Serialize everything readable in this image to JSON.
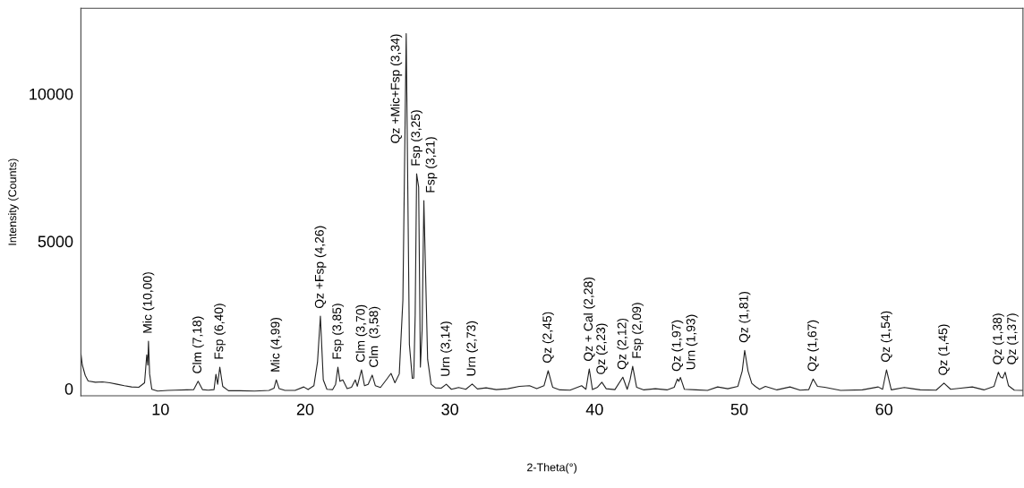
{
  "chart_data": {
    "type": "line",
    "xlabel": "2-Theta(°)",
    "ylabel": "Intensity (Counts)",
    "xlim": [
      4.5,
      69.6
    ],
    "ylim": [
      -240,
      12900
    ],
    "xticks": [
      10,
      20,
      30,
      40,
      50,
      60
    ],
    "yticks": [
      0,
      5000,
      10000
    ],
    "grid": false,
    "legend": false,
    "marker": "none",
    "line_style": "solid",
    "series": [
      {
        "color": "#222222",
        "x": [
          4.5,
          4.6,
          4.8,
          5.0,
          5.5,
          6.0,
          6.5,
          7.0,
          7.5,
          8.0,
          8.5,
          8.9,
          9.05,
          9.12,
          9.17,
          9.25,
          9.4,
          9.8,
          10.5,
          11.0,
          11.8,
          12.3,
          12.6,
          12.9,
          13.3,
          13.7,
          13.83,
          13.95,
          14.1,
          14.3,
          14.7,
          15.5,
          16.5,
          17.5,
          17.85,
          18.0,
          18.2,
          18.6,
          19.3,
          19.9,
          20.2,
          20.6,
          20.85,
          21.05,
          21.25,
          21.5,
          21.9,
          22.1,
          22.26,
          22.4,
          22.6,
          22.9,
          23.2,
          23.46,
          23.6,
          23.89,
          24.1,
          24.35,
          24.63,
          24.85,
          25.2,
          25.6,
          25.93,
          26.2,
          26.5,
          26.75,
          26.98,
          27.2,
          27.4,
          27.5,
          27.6,
          27.7,
          27.84,
          27.96,
          28.08,
          28.2,
          28.46,
          28.7,
          29.0,
          29.4,
          29.75,
          30.1,
          30.6,
          31.1,
          31.54,
          31.9,
          32.5,
          33.2,
          34.0,
          34.8,
          35.5,
          36.0,
          36.5,
          36.79,
          37.1,
          37.6,
          38.3,
          39.1,
          39.4,
          39.63,
          39.85,
          40.2,
          40.5,
          40.8,
          41.4,
          41.95,
          42.25,
          42.45,
          42.63,
          42.9,
          43.4,
          44.2,
          45.0,
          45.5,
          45.72,
          45.82,
          45.93,
          46.2,
          47.0,
          47.8,
          48.5,
          49.2,
          49.9,
          50.2,
          50.37,
          50.6,
          50.86,
          51.1,
          51.4,
          51.8,
          52.6,
          53.5,
          54.2,
          54.8,
          55.1,
          55.4,
          55.9,
          57.0,
          58.5,
          59.6,
          59.9,
          60.17,
          60.5,
          61.4,
          62.5,
          63.6,
          64.14,
          64.6,
          65.3,
          66.1,
          66.9,
          67.6,
          67.9,
          68.05,
          68.2,
          68.37,
          68.6,
          69.0,
          69.6
        ],
        "values": [
          1190,
          800,
          450,
          260,
          220,
          230,
          200,
          150,
          100,
          60,
          50,
          200,
          1150,
          800,
          1610,
          500,
          -20,
          -80,
          -60,
          -50,
          -40,
          -30,
          250,
          -30,
          -50,
          -30,
          490,
          150,
          730,
          80,
          -70,
          -70,
          -80,
          -60,
          20,
          300,
          0,
          -60,
          -60,
          60,
          -30,
          100,
          900,
          2460,
          300,
          -20,
          -30,
          150,
          730,
          250,
          300,
          0,
          50,
          300,
          80,
          640,
          100,
          150,
          460,
          100,
          40,
          300,
          520,
          200,
          500,
          3000,
          12040,
          1500,
          350,
          360,
          2500,
          7290,
          6840,
          730,
          2000,
          6380,
          1000,
          150,
          30,
          20,
          150,
          -20,
          40,
          -20,
          160,
          -10,
          30,
          -30,
          0,
          80,
          100,
          0,
          100,
          610,
          50,
          -40,
          -50,
          100,
          -20,
          670,
          -30,
          50,
          220,
          0,
          -30,
          390,
          -20,
          300,
          760,
          50,
          -40,
          0,
          -40,
          50,
          330,
          250,
          380,
          -20,
          -40,
          -60,
          60,
          0,
          80,
          600,
          1300,
          600,
          180,
          80,
          -20,
          80,
          -40,
          60,
          -50,
          -30,
          330,
          80,
          50,
          -60,
          -40,
          60,
          -20,
          640,
          -40,
          40,
          -40,
          -50,
          190,
          -20,
          20,
          60,
          -40,
          80,
          560,
          400,
          360,
          560,
          100,
          -50,
          -60
        ]
      }
    ],
    "annotations": [
      {
        "text": "Mic (10,00)",
        "x": 9.17,
        "y": 1610
      },
      {
        "text": "Clm (7,18)",
        "x": 12.6,
        "y": 250
      },
      {
        "text": "Fsp (6,40)",
        "x": 14.1,
        "y": 730
      },
      {
        "text": "Mic (4,99)",
        "x": 18.0,
        "y": 300
      },
      {
        "text": "Qz +Fsp (4,26)",
        "x": 21.05,
        "y": 2460
      },
      {
        "text": "Fsp (3,85)",
        "x": 22.26,
        "y": 730
      },
      {
        "text": "Clm (3,70)",
        "x": 23.89,
        "y": 640
      },
      {
        "text": "Clm  (3,58)",
        "x": 24.63,
        "y": 460
      },
      {
        "text": "Qz +Mic+Fsp (3,34)",
        "x": 26.98,
        "y": 12040
      },
      {
        "text": "Fsp (3,25)",
        "x": 27.7,
        "y": 7290
      },
      {
        "text": "Fsp (3,21)",
        "x": 28.2,
        "y": 6380
      },
      {
        "text": "Urn (3,14)",
        "x": 29.75,
        "y": 150
      },
      {
        "text": "Urn (2,73)",
        "x": 31.54,
        "y": 160
      },
      {
        "text": "Qz (2,45)",
        "x": 36.79,
        "y": 610
      },
      {
        "text": "Qz + Cal (2,28)",
        "x": 39.63,
        "y": 670
      },
      {
        "text": "Qz (2,23)",
        "x": 40.5,
        "y": 220
      },
      {
        "text": "Qz (2,12)",
        "x": 41.95,
        "y": 390
      },
      {
        "text": "Fsp (2,09)",
        "x": 42.63,
        "y": 760
      },
      {
        "text": "Qz (1,97)",
        "x": 45.72,
        "y": 330
      },
      {
        "text": "Urn (1,93)",
        "x": 46.2,
        "y": 380
      },
      {
        "text": "Qz (1,81)",
        "x": 50.37,
        "y": 1300
      },
      {
        "text": "Qz (1,67)",
        "x": 55.1,
        "y": 330
      },
      {
        "text": "Qz (1,54)",
        "x": 60.17,
        "y": 640
      },
      {
        "text": "Qz (1,45)",
        "x": 64.14,
        "y": 190
      },
      {
        "text": "Qz (1,38)",
        "x": 67.9,
        "y": 560
      },
      {
        "text": "Qz (1,37)",
        "x": 68.37,
        "y": 560
      }
    ]
  }
}
